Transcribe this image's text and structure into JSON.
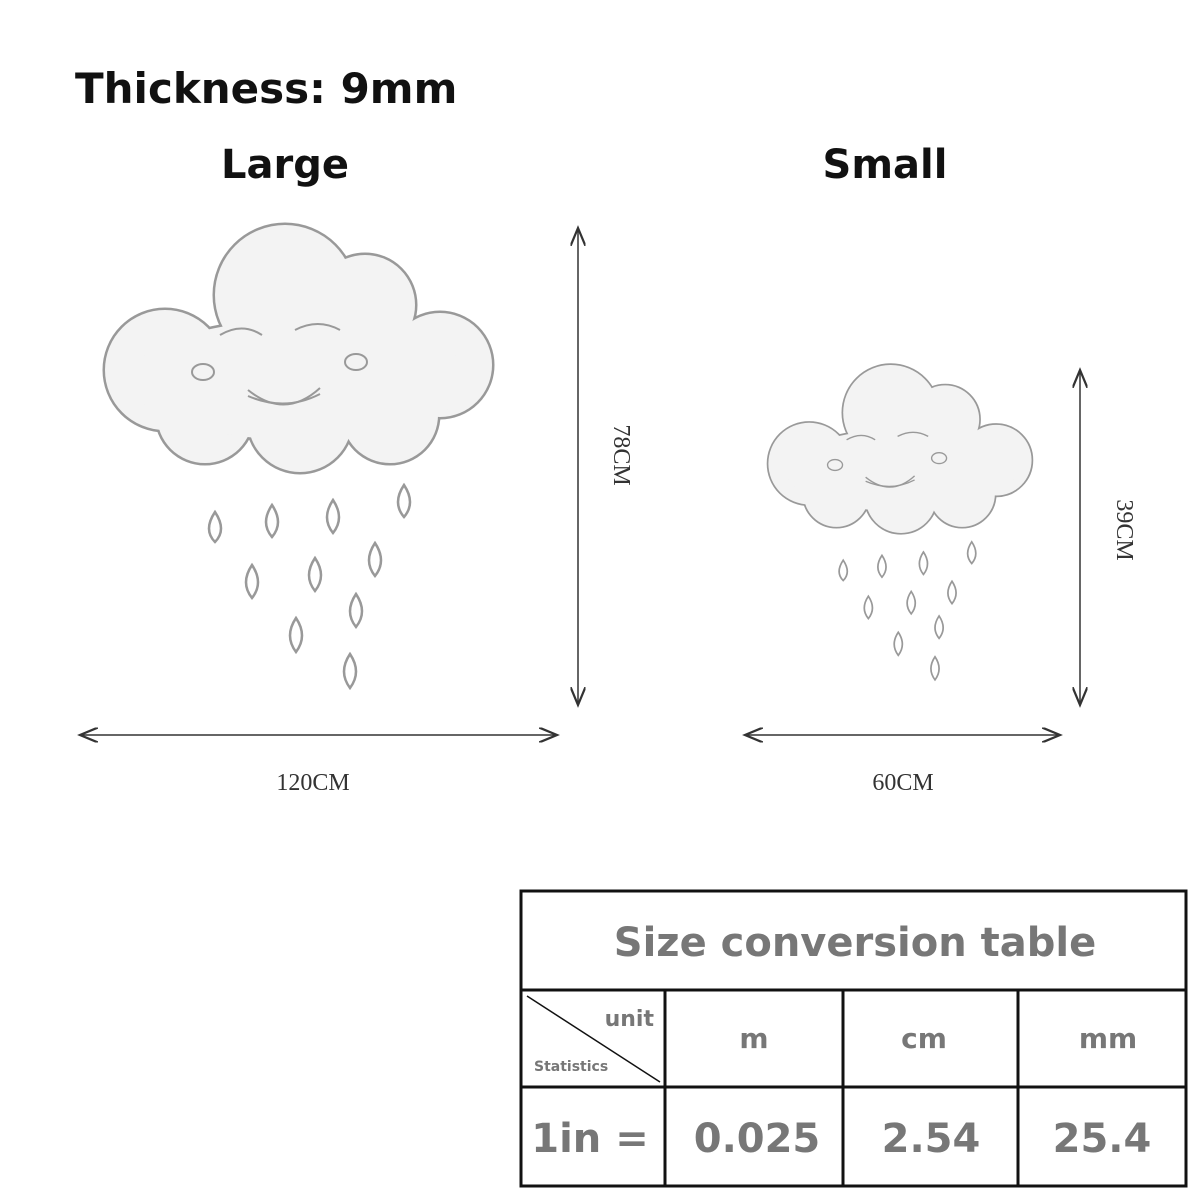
{
  "header": {
    "thickness": "Thickness: 9mm"
  },
  "products": [
    {
      "label": "Large",
      "height": "78CM",
      "width": "120CM"
    },
    {
      "label": "Small",
      "height": "39CM",
      "width": "60CM"
    }
  ],
  "table": {
    "title": "Size conversion table",
    "corner": {
      "unit": "unit",
      "statistics": "Statistics"
    },
    "columns": [
      "m",
      "cm",
      "mm"
    ],
    "rows": [
      [
        "1in =",
        "0.025",
        "2.54",
        "25.4"
      ]
    ]
  }
}
